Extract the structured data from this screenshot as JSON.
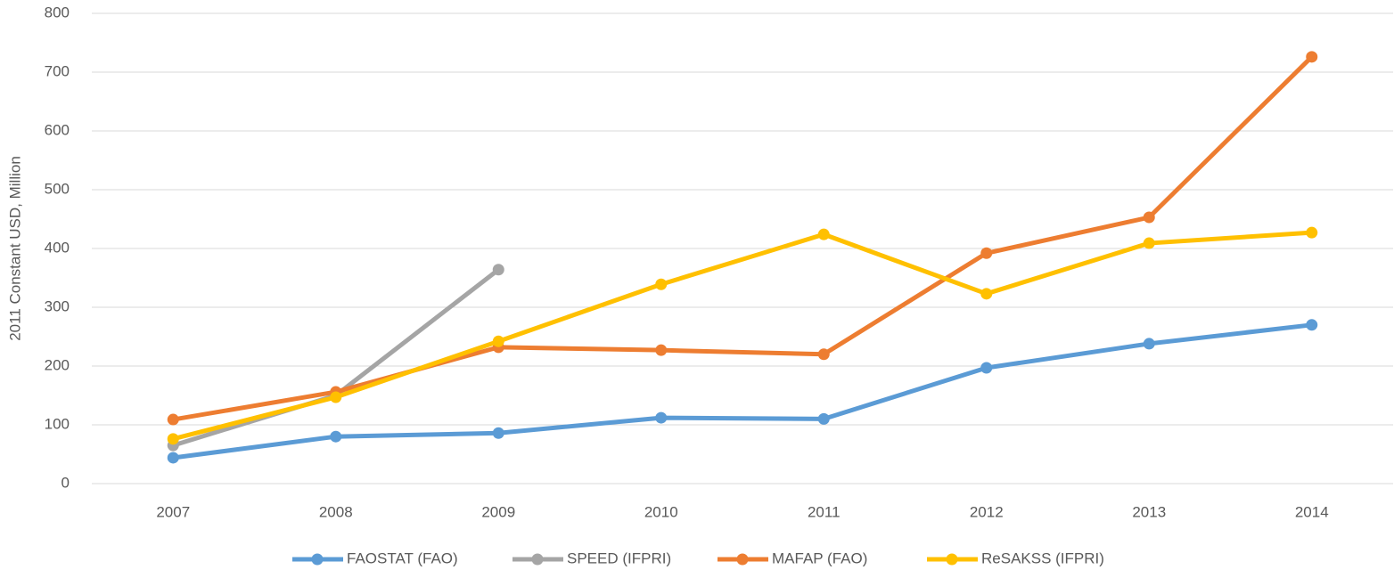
{
  "chart_data": {
    "type": "line",
    "y_label": "2011 Constant USD, Million",
    "categories": [
      "2007",
      "2008",
      "2009",
      "2010",
      "2011",
      "2012",
      "2013",
      "2014"
    ],
    "series": [
      {
        "name": "FAOSTAT (FAO)",
        "color": "#5b9bd5",
        "values": [
          44,
          80,
          86,
          112,
          110,
          197,
          238,
          270
        ]
      },
      {
        "name": "SPEED (IFPRI)",
        "color": "#a5a5a5",
        "values": [
          65,
          150,
          364,
          null,
          null,
          null,
          null,
          null
        ]
      },
      {
        "name": "MAFAP (FAO)",
        "color": "#ed7d31",
        "values": [
          109,
          156,
          232,
          227,
          220,
          392,
          453,
          726
        ]
      },
      {
        "name": "ReSAKSS (IFPRI)",
        "color": "#ffc000",
        "values": [
          76,
          147,
          242,
          339,
          424,
          323,
          409,
          427
        ]
      }
    ],
    "ylim": [
      0,
      800
    ],
    "yticks": [
      0,
      100,
      200,
      300,
      400,
      500,
      600,
      700,
      800
    ],
    "grid": true,
    "legend": "bottom"
  }
}
